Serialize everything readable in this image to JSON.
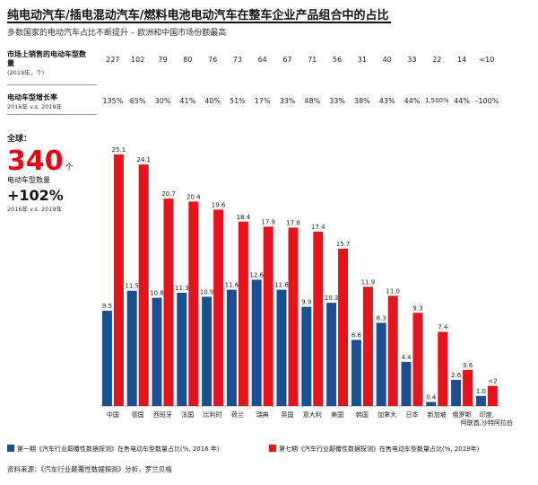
{
  "header": {
    "title": "纯电动汽车/插电混动汽车/燃料电池电动汽车在整车企业产品组合中的占比",
    "subtitle": "多数国家的电动汽车占比不断提升 – 欧洲和中国市场份额最高"
  },
  "rows": {
    "count_label": "市场上销售的电动车型数量",
    "count_sub": "(2019年，个)",
    "growth_label": "电动车型增长率",
    "growth_sub": "2016年 v.s. 2019年"
  },
  "global": {
    "label": "全球：",
    "value": "340",
    "unit": "个",
    "value_desc": "电动车型数量",
    "growth": "+102%",
    "growth_desc": "2016年 v.s. 2019年"
  },
  "legend": {
    "s2016": "第一期《汽车行业颠覆性数据探测》在售电动车型数量占比(%, 2016 年)",
    "s2019": "第七期《汽车行业颠覆性数据探测》在售电动车型数量占比(%, 2019年)"
  },
  "source": "资料来源：《汽车行业颠覆性数据探测》分析，罗兰贝格",
  "colors": {
    "s2016": "#1b4f93",
    "s2019": "#e3141b"
  },
  "chart_data": {
    "type": "bar",
    "title": "纯电动汽车/插电混动汽车/燃料电池电动汽车在整车企业产品组合中的占比",
    "categories": [
      "中国",
      "德国",
      "西班牙",
      "法国",
      "比利时",
      "荷兰",
      "瑞典",
      "英国",
      "意大利",
      "美国",
      "韩国",
      "加拿大",
      "日本",
      "新加坡",
      "俄罗斯",
      "印度, 阿联酋, 沙特阿拉伯"
    ],
    "model_counts": [
      "227",
      "102",
      "79",
      "80",
      "76",
      "73",
      "64",
      "67",
      "71",
      "56",
      "31",
      "40",
      "33",
      "22",
      "14",
      "<10"
    ],
    "growth_rates": [
      "135%",
      "65%",
      "30%",
      "41%",
      "40%",
      "51%",
      "17%",
      "33%",
      "48%",
      "33%",
      "38%",
      "43%",
      "44%",
      "1,500%",
      "44%",
      "–100%"
    ],
    "series": [
      {
        "name": "第一期《汽车行业颠覆性数据探测》在售电动车型数量占比(%, 2016 年)",
        "values": [
          9.5,
          11.5,
          10.8,
          11.3,
          10.9,
          11.6,
          12.6,
          11.6,
          9.9,
          10.3,
          6.6,
          8.3,
          4.4,
          0.4,
          2.6,
          1.0
        ],
        "labels": [
          "9.5",
          "11.5",
          "10.8",
          "11.3",
          "10.9",
          "11.6",
          "12.6",
          "11.6",
          "9.9",
          "10.3",
          "6.6",
          "8.3",
          "4.4",
          "0.4",
          "2.6",
          "1.0"
        ]
      },
      {
        "name": "第七期《汽车行业颠覆性数据探测》在售电动车型数量占比(%, 2019年)",
        "values": [
          25.1,
          24.1,
          20.7,
          20.4,
          19.6,
          18.4,
          17.9,
          17.8,
          17.4,
          15.7,
          11.9,
          11.0,
          9.3,
          7.4,
          3.6,
          2.0
        ],
        "labels": [
          "25.1",
          "24.1",
          "20.7",
          "20.4",
          "19.6",
          "18.4",
          "17.9",
          "17.8",
          "17.4",
          "15.7",
          "11.9",
          "11.0",
          "9.3",
          "7.4",
          "3.6",
          "<2"
        ]
      }
    ],
    "ylim": [
      0,
      26
    ],
    "grid": false,
    "legend_position": "bottom"
  }
}
